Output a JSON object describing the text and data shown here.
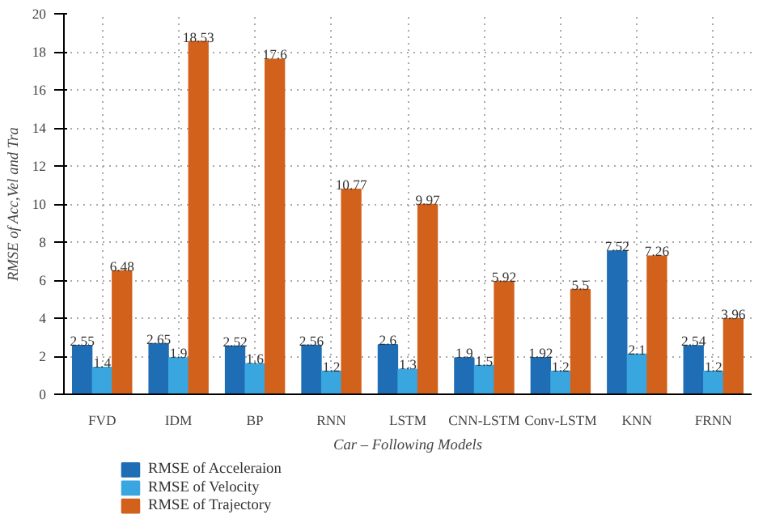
{
  "chart_data": {
    "type": "bar",
    "xlabel": "Car – Following Models",
    "ylabel": "RMSE of Acc,Vel and Tra",
    "categories": [
      "FVD",
      "IDM",
      "BP",
      "RNN",
      "LSTM",
      "CNN-LSTM",
      "Conv-LSTM",
      "KNN",
      "FRNN"
    ],
    "series": [
      {
        "name": "RMSE of Acceleraion",
        "color": "#1f6db5",
        "values": [
          2.55,
          2.65,
          2.52,
          2.56,
          2.6,
          1.9,
          1.92,
          7.52,
          2.54
        ],
        "value_labels": [
          "2.55",
          "2.65",
          "2.52",
          "2.56",
          "2.6",
          "1.9",
          "1.92",
          "7.52",
          "2.54"
        ]
      },
      {
        "name": "RMSE of Velocity",
        "color": "#3aa6e0",
        "values": [
          1.4,
          1.9,
          1.6,
          1.2,
          1.3,
          1.5,
          1.2,
          2.1,
          1.2
        ],
        "value_labels": [
          "1.4",
          "1.9",
          "1.6",
          "1.2",
          "1.3",
          "1.5",
          "1.2",
          "2.1",
          "1.2"
        ]
      },
      {
        "name": "RMSE of Trajectory",
        "color": "#d2611c",
        "values": [
          6.48,
          18.53,
          17.6,
          10.77,
          9.97,
          5.92,
          5.5,
          7.26,
          3.96
        ],
        "value_labels": [
          "6.48",
          "18.53",
          "17.6",
          "10.77",
          "9.97",
          "5.92",
          "5.5",
          "7.26",
          "3.96"
        ]
      }
    ],
    "ylim": [
      0,
      20
    ],
    "yticks": [
      0,
      2,
      4,
      6,
      8,
      10,
      12,
      14,
      16,
      18,
      20
    ],
    "grid": true,
    "legend": "bottom left"
  }
}
